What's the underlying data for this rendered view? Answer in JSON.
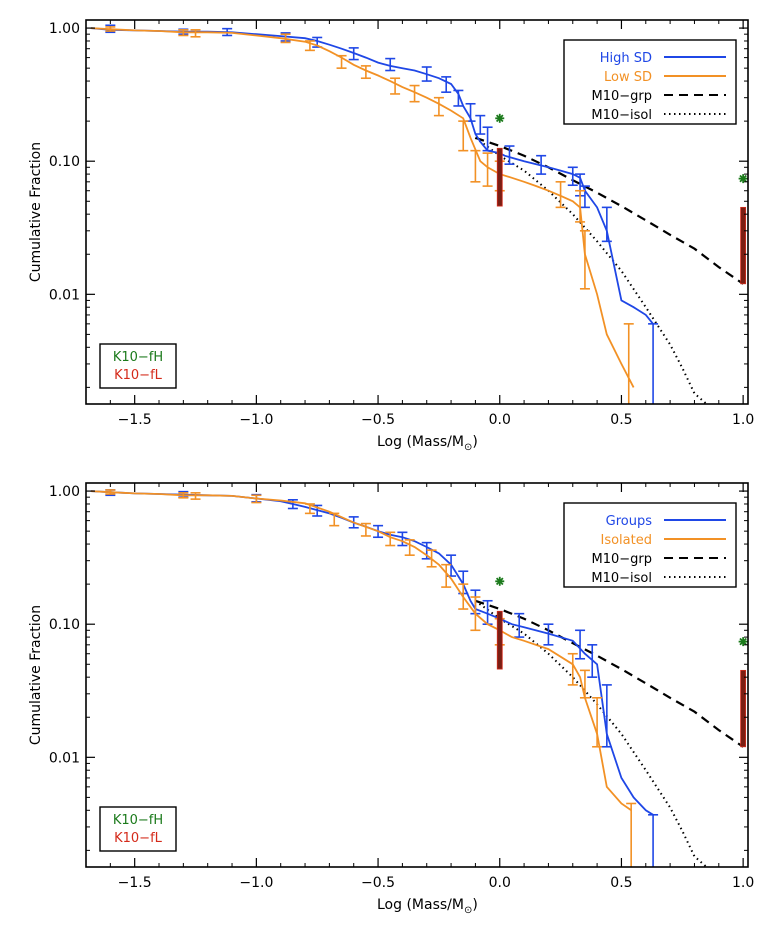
{
  "chart_data": [
    {
      "type": "line",
      "xlabel": "Log (Mass/M",
      "xlabel_sub": "⊙",
      "xlabel_close": ")",
      "ylabel": "Cumulative Fraction",
      "xlim": [
        -1.7,
        1.02
      ],
      "ylim": [
        0.0015,
        1.15
      ],
      "yscale": "log",
      "x_ticks": [
        -1.5,
        -1.0,
        -0.5,
        0.0,
        0.5,
        1.0
      ],
      "x_tick_labels": [
        "−1.5",
        "−1.0",
        "−0.5",
        "0.0",
        "0.5",
        "1.0"
      ],
      "y_ticks": [
        1.0,
        0.1,
        0.01
      ],
      "y_tick_labels": [
        "1.00",
        "0.10",
        "0.01"
      ],
      "legend": {
        "position": "top-right",
        "entries": [
          {
            "label": "High SD",
            "color": "#1f47e6",
            "style": "solid",
            "text_color": "#1f47e6"
          },
          {
            "label": "Low SD",
            "color": "#f29125",
            "style": "solid",
            "text_color": "#f29125"
          },
          {
            "label": "M10−grp",
            "color": "#000000",
            "style": "dashed",
            "text_color": "#000000"
          },
          {
            "label": "M10−isol",
            "color": "#000000",
            "style": "dotted",
            "text_color": "#000000"
          }
        ]
      },
      "inset_legend": {
        "position": "bottom-left",
        "entries": [
          {
            "label": "K10−fH",
            "color": "#1b7a1b"
          },
          {
            "label": "K10−fL",
            "color": "#d42a1a"
          }
        ]
      },
      "series": [
        {
          "name": "High SD",
          "color": "#1f47e6",
          "x": [
            -1.68,
            -1.6,
            -1.5,
            -1.4,
            -1.3,
            -1.2,
            -1.1,
            -1.0,
            -0.9,
            -0.8,
            -0.75,
            -0.7,
            -0.65,
            -0.6,
            -0.55,
            -0.5,
            -0.45,
            -0.4,
            -0.35,
            -0.3,
            -0.25,
            -0.2,
            -0.17,
            -0.15,
            -0.12,
            -0.1,
            -0.08,
            -0.05,
            0.0,
            0.02,
            0.1,
            0.2,
            0.25,
            0.3,
            0.33,
            0.35,
            0.4,
            0.44,
            0.5,
            0.55,
            0.6,
            0.63
          ],
          "y": [
            1.0,
            0.97,
            0.96,
            0.95,
            0.94,
            0.94,
            0.93,
            0.9,
            0.87,
            0.84,
            0.8,
            0.75,
            0.7,
            0.65,
            0.6,
            0.55,
            0.52,
            0.5,
            0.48,
            0.45,
            0.42,
            0.38,
            0.32,
            0.26,
            0.21,
            0.16,
            0.14,
            0.12,
            0.115,
            0.11,
            0.1,
            0.09,
            0.085,
            0.08,
            0.075,
            0.06,
            0.045,
            0.03,
            0.009,
            0.008,
            0.007,
            0.006
          ],
          "err_x": [
            -1.6,
            -1.3,
            -1.12,
            -0.88,
            -0.75,
            -0.6,
            -0.45,
            -0.3,
            -0.22,
            -0.17,
            -0.12,
            -0.08,
            -0.05,
            0.04,
            0.17,
            0.3,
            0.33,
            0.35,
            0.44,
            0.63
          ],
          "err_lo": [
            0.93,
            0.9,
            0.88,
            0.8,
            0.72,
            0.58,
            0.48,
            0.4,
            0.33,
            0.26,
            0.2,
            0.16,
            0.12,
            0.095,
            0.08,
            0.066,
            0.055,
            0.045,
            0.025,
            0.0015
          ],
          "err_hi": [
            1.05,
            0.98,
            0.99,
            0.92,
            0.85,
            0.71,
            0.59,
            0.51,
            0.43,
            0.34,
            0.27,
            0.22,
            0.18,
            0.13,
            0.11,
            0.09,
            0.08,
            0.065,
            0.045,
            0.006
          ]
        },
        {
          "name": "Low SD",
          "color": "#f29125",
          "x": [
            -1.68,
            -1.6,
            -1.5,
            -1.4,
            -1.3,
            -1.2,
            -1.1,
            -1.0,
            -0.9,
            -0.8,
            -0.75,
            -0.7,
            -0.65,
            -0.6,
            -0.55,
            -0.5,
            -0.45,
            -0.4,
            -0.35,
            -0.3,
            -0.25,
            -0.2,
            -0.15,
            -0.12,
            -0.08,
            -0.05,
            0.0,
            0.05,
            0.1,
            0.15,
            0.2,
            0.25,
            0.3,
            0.33,
            0.35,
            0.4,
            0.44,
            0.5,
            0.55
          ],
          "y": [
            1.0,
            0.98,
            0.96,
            0.95,
            0.93,
            0.93,
            0.92,
            0.88,
            0.84,
            0.79,
            0.74,
            0.67,
            0.6,
            0.53,
            0.48,
            0.44,
            0.4,
            0.36,
            0.33,
            0.3,
            0.27,
            0.24,
            0.21,
            0.15,
            0.1,
            0.09,
            0.08,
            0.075,
            0.07,
            0.065,
            0.06,
            0.055,
            0.05,
            0.045,
            0.02,
            0.01,
            0.005,
            0.003,
            0.002
          ],
          "err_x": [
            -1.6,
            -1.3,
            -1.25,
            -0.88,
            -0.78,
            -0.65,
            -0.55,
            -0.43,
            -0.35,
            -0.25,
            -0.15,
            -0.1,
            -0.05,
            0.0,
            0.25,
            0.33,
            0.35,
            0.53
          ],
          "err_lo": [
            0.95,
            0.88,
            0.86,
            0.78,
            0.68,
            0.5,
            0.42,
            0.32,
            0.28,
            0.22,
            0.12,
            0.07,
            0.065,
            0.06,
            0.045,
            0.035,
            0.011,
            0.0015
          ],
          "err_hi": [
            1.02,
            0.97,
            0.97,
            0.9,
            0.8,
            0.62,
            0.52,
            0.42,
            0.37,
            0.3,
            0.2,
            0.12,
            0.115,
            0.1,
            0.07,
            0.06,
            0.03,
            0.006
          ]
        }
      ],
      "models": [
        {
          "name": "M10−grp",
          "style": "dashed",
          "x": [
            -0.1,
            0.0,
            0.1,
            0.2,
            0.3,
            0.4,
            0.5,
            0.6,
            0.7,
            0.8,
            0.9,
            1.0
          ],
          "y": [
            0.15,
            0.13,
            0.11,
            0.09,
            0.072,
            0.058,
            0.046,
            0.036,
            0.028,
            0.022,
            0.016,
            0.012
          ]
        },
        {
          "name": "M10−isol",
          "style": "dotted",
          "x": [
            -0.1,
            0.0,
            0.1,
            0.2,
            0.3,
            0.4,
            0.5,
            0.6,
            0.7,
            0.75,
            0.8,
            0.85
          ],
          "y": [
            0.15,
            0.11,
            0.085,
            0.06,
            0.04,
            0.025,
            0.015,
            0.008,
            0.0042,
            0.0028,
            0.0018,
            0.0015
          ]
        }
      ],
      "k10_points": [
        {
          "x": 0.0,
          "y": 0.21
        },
        {
          "x": 1.0,
          "y": 0.074
        }
      ],
      "k10_bars": [
        {
          "x": 0.0,
          "lo": 0.046,
          "hi": 0.125
        },
        {
          "x": 1.0,
          "lo": 0.012,
          "hi": 0.045
        }
      ]
    },
    {
      "type": "line",
      "xlabel": "Log (Mass/M",
      "xlabel_sub": "⊙",
      "xlabel_close": ")",
      "ylabel": "Cumulative Fraction",
      "xlim": [
        -1.7,
        1.02
      ],
      "ylim": [
        0.0015,
        1.15
      ],
      "yscale": "log",
      "x_ticks": [
        -1.5,
        -1.0,
        -0.5,
        0.0,
        0.5,
        1.0
      ],
      "x_tick_labels": [
        "−1.5",
        "−1.0",
        "−0.5",
        "0.0",
        "0.5",
        "1.0"
      ],
      "y_ticks": [
        1.0,
        0.1,
        0.01
      ],
      "y_tick_labels": [
        "1.00",
        "0.10",
        "0.01"
      ],
      "legend": {
        "position": "top-right",
        "entries": [
          {
            "label": "Groups",
            "color": "#1f47e6",
            "style": "solid",
            "text_color": "#1f47e6"
          },
          {
            "label": "Isolated",
            "color": "#f29125",
            "style": "solid",
            "text_color": "#f29125"
          },
          {
            "label": "M10−grp",
            "color": "#000000",
            "style": "dashed",
            "text_color": "#000000"
          },
          {
            "label": "M10−isol",
            "color": "#000000",
            "style": "dotted",
            "text_color": "#000000"
          }
        ]
      },
      "inset_legend": {
        "position": "bottom-left",
        "entries": [
          {
            "label": "K10−fH",
            "color": "#1b7a1b"
          },
          {
            "label": "K10−fL",
            "color": "#d42a1a"
          }
        ]
      },
      "series": [
        {
          "name": "Groups",
          "color": "#1f47e6",
          "x": [
            -1.68,
            -1.6,
            -1.5,
            -1.4,
            -1.3,
            -1.2,
            -1.1,
            -1.0,
            -0.9,
            -0.85,
            -0.8,
            -0.75,
            -0.7,
            -0.65,
            -0.6,
            -0.55,
            -0.5,
            -0.45,
            -0.4,
            -0.35,
            -0.3,
            -0.25,
            -0.2,
            -0.15,
            -0.12,
            -0.1,
            -0.05,
            0.0,
            0.05,
            0.1,
            0.2,
            0.3,
            0.35,
            0.4,
            0.44,
            0.5,
            0.55,
            0.6,
            0.63
          ],
          "y": [
            1.0,
            0.98,
            0.96,
            0.95,
            0.94,
            0.93,
            0.92,
            0.88,
            0.84,
            0.8,
            0.76,
            0.72,
            0.68,
            0.63,
            0.58,
            0.54,
            0.5,
            0.47,
            0.45,
            0.42,
            0.38,
            0.34,
            0.28,
            0.2,
            0.15,
            0.13,
            0.12,
            0.11,
            0.1,
            0.095,
            0.085,
            0.075,
            0.06,
            0.05,
            0.015,
            0.007,
            0.005,
            0.004,
            0.0037
          ],
          "err_x": [
            -1.6,
            -1.3,
            -1.0,
            -0.85,
            -0.75,
            -0.6,
            -0.5,
            -0.4,
            -0.3,
            -0.2,
            -0.15,
            -0.1,
            -0.05,
            0.08,
            0.2,
            0.33,
            0.38,
            0.44,
            0.63
          ],
          "err_lo": [
            0.93,
            0.9,
            0.83,
            0.74,
            0.65,
            0.53,
            0.45,
            0.39,
            0.31,
            0.23,
            0.17,
            0.12,
            0.1,
            0.08,
            0.07,
            0.055,
            0.04,
            0.012,
            0.0015
          ],
          "err_hi": [
            1.02,
            0.99,
            0.94,
            0.86,
            0.78,
            0.64,
            0.55,
            0.49,
            0.41,
            0.33,
            0.25,
            0.18,
            0.15,
            0.12,
            0.1,
            0.09,
            0.07,
            0.035,
            0.0037
          ]
        },
        {
          "name": "Isolated",
          "color": "#f29125",
          "x": [
            -1.68,
            -1.6,
            -1.5,
            -1.4,
            -1.3,
            -1.2,
            -1.1,
            -1.0,
            -0.9,
            -0.8,
            -0.7,
            -0.6,
            -0.5,
            -0.45,
            -0.4,
            -0.35,
            -0.3,
            -0.25,
            -0.2,
            -0.15,
            -0.1,
            -0.05,
            0.0,
            0.05,
            0.1,
            0.2,
            0.3,
            0.33,
            0.35,
            0.4,
            0.44,
            0.5,
            0.54
          ],
          "y": [
            1.0,
            0.98,
            0.96,
            0.95,
            0.93,
            0.93,
            0.92,
            0.88,
            0.85,
            0.81,
            0.7,
            0.58,
            0.5,
            0.45,
            0.42,
            0.38,
            0.33,
            0.28,
            0.22,
            0.16,
            0.12,
            0.1,
            0.09,
            0.08,
            0.075,
            0.065,
            0.05,
            0.04,
            0.028,
            0.015,
            0.006,
            0.0045,
            0.004
          ],
          "err_x": [
            -1.6,
            -1.3,
            -1.25,
            -1.0,
            -0.78,
            -0.68,
            -0.55,
            -0.45,
            -0.37,
            -0.28,
            -0.22,
            -0.15,
            -0.1,
            0.0,
            0.3,
            0.35,
            0.4,
            0.54
          ],
          "err_lo": [
            0.95,
            0.89,
            0.87,
            0.82,
            0.68,
            0.55,
            0.46,
            0.39,
            0.33,
            0.27,
            0.19,
            0.13,
            0.09,
            0.07,
            0.035,
            0.028,
            0.012,
            0.0015
          ],
          "err_hi": [
            1.02,
            0.97,
            0.97,
            0.93,
            0.8,
            0.68,
            0.57,
            0.49,
            0.43,
            0.36,
            0.28,
            0.2,
            0.16,
            0.11,
            0.06,
            0.045,
            0.028,
            0.0045
          ]
        }
      ],
      "models": [
        {
          "name": "M10−grp",
          "style": "dashed",
          "x": [
            -0.1,
            0.0,
            0.1,
            0.2,
            0.3,
            0.4,
            0.5,
            0.6,
            0.7,
            0.8,
            0.9,
            1.0
          ],
          "y": [
            0.15,
            0.13,
            0.11,
            0.09,
            0.072,
            0.058,
            0.046,
            0.036,
            0.028,
            0.022,
            0.016,
            0.012
          ]
        },
        {
          "name": "M10−isol",
          "style": "dotted",
          "x": [
            -0.1,
            0.0,
            0.1,
            0.2,
            0.3,
            0.4,
            0.5,
            0.6,
            0.7,
            0.75,
            0.8,
            0.85
          ],
          "y": [
            0.15,
            0.11,
            0.085,
            0.06,
            0.04,
            0.025,
            0.015,
            0.008,
            0.0042,
            0.0028,
            0.0018,
            0.0015
          ]
        }
      ],
      "k10_points": [
        {
          "x": 0.0,
          "y": 0.21
        },
        {
          "x": 1.0,
          "y": 0.074
        }
      ],
      "k10_bars": [
        {
          "x": 0.0,
          "lo": 0.046,
          "hi": 0.125
        },
        {
          "x": 1.0,
          "lo": 0.012,
          "hi": 0.045
        }
      ]
    }
  ]
}
